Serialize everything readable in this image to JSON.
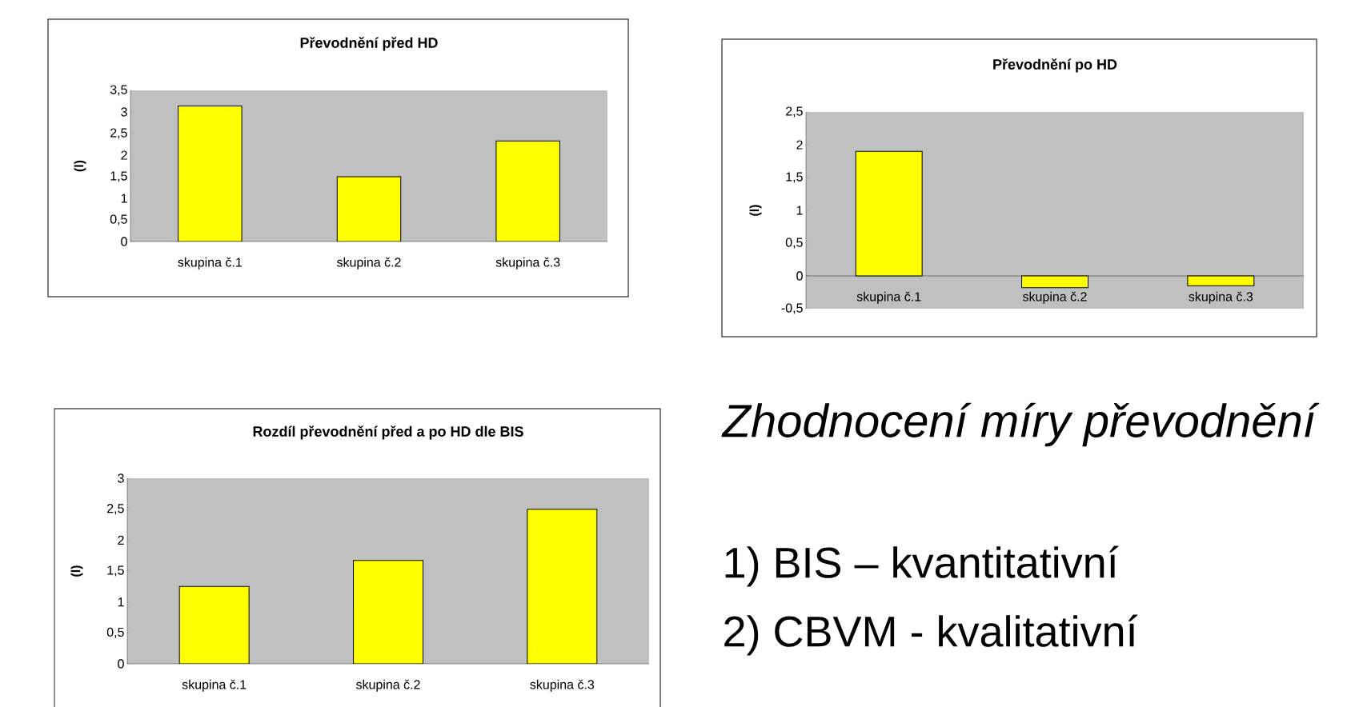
{
  "chart_data": [
    {
      "type": "bar",
      "title": "Převodnění před HD",
      "ylabel": "(l)",
      "categories": [
        "skupina č.1",
        "skupina č.2",
        "skupina č.3"
      ],
      "values": [
        3.14,
        1.5,
        2.33
      ],
      "color": "#ffff00",
      "ylim": [
        0,
        3.5
      ],
      "yticks": [
        0,
        {
          "value": 0.5,
          "label": "0,5"
        },
        1,
        {
          "value": 1.5,
          "label": "1,5"
        },
        2,
        {
          "value": 2.5,
          "label": "2,5"
        },
        3,
        {
          "value": 3.5,
          "label": "3,5"
        }
      ]
    },
    {
      "type": "bar",
      "title": "Převodnění po HD",
      "ylabel": "(l)",
      "categories": [
        "skupina č.1",
        "skupina č.2",
        "skupina č.3"
      ],
      "values": [
        1.9,
        -0.18,
        -0.15
      ],
      "color": "#ffff00",
      "ylim": [
        -0.5,
        2.5
      ],
      "yticks": [
        {
          "value": -0.5,
          "label": "-0,5"
        },
        0,
        {
          "value": 0.5,
          "label": "0,5"
        },
        1,
        {
          "value": 1.5,
          "label": "1,5"
        },
        2,
        {
          "value": 2.5,
          "label": "2,5"
        }
      ]
    },
    {
      "type": "bar",
      "title": "Rozdíl převodnění před a po HD dle BIS",
      "ylabel": "(l)",
      "categories": [
        "skupina č.1",
        "skupina č.2",
        "skupina č.3"
      ],
      "values": [
        1.25,
        1.67,
        2.5
      ],
      "color": "#ffff00",
      "ylim": [
        0,
        3
      ],
      "yticks": [
        0,
        {
          "value": 0.5,
          "label": "0,5"
        },
        1,
        {
          "value": 1.5,
          "label": "1,5"
        },
        2,
        {
          "value": 2.5,
          "label": "2,5"
        },
        3
      ]
    },
    {
      "type": "other",
      "title": "Zhodnocení míry převodnění",
      "annotations": [
        "1)  BIS – kvantitativní",
        "2)  CBVM - kvalitativní"
      ]
    }
  ]
}
